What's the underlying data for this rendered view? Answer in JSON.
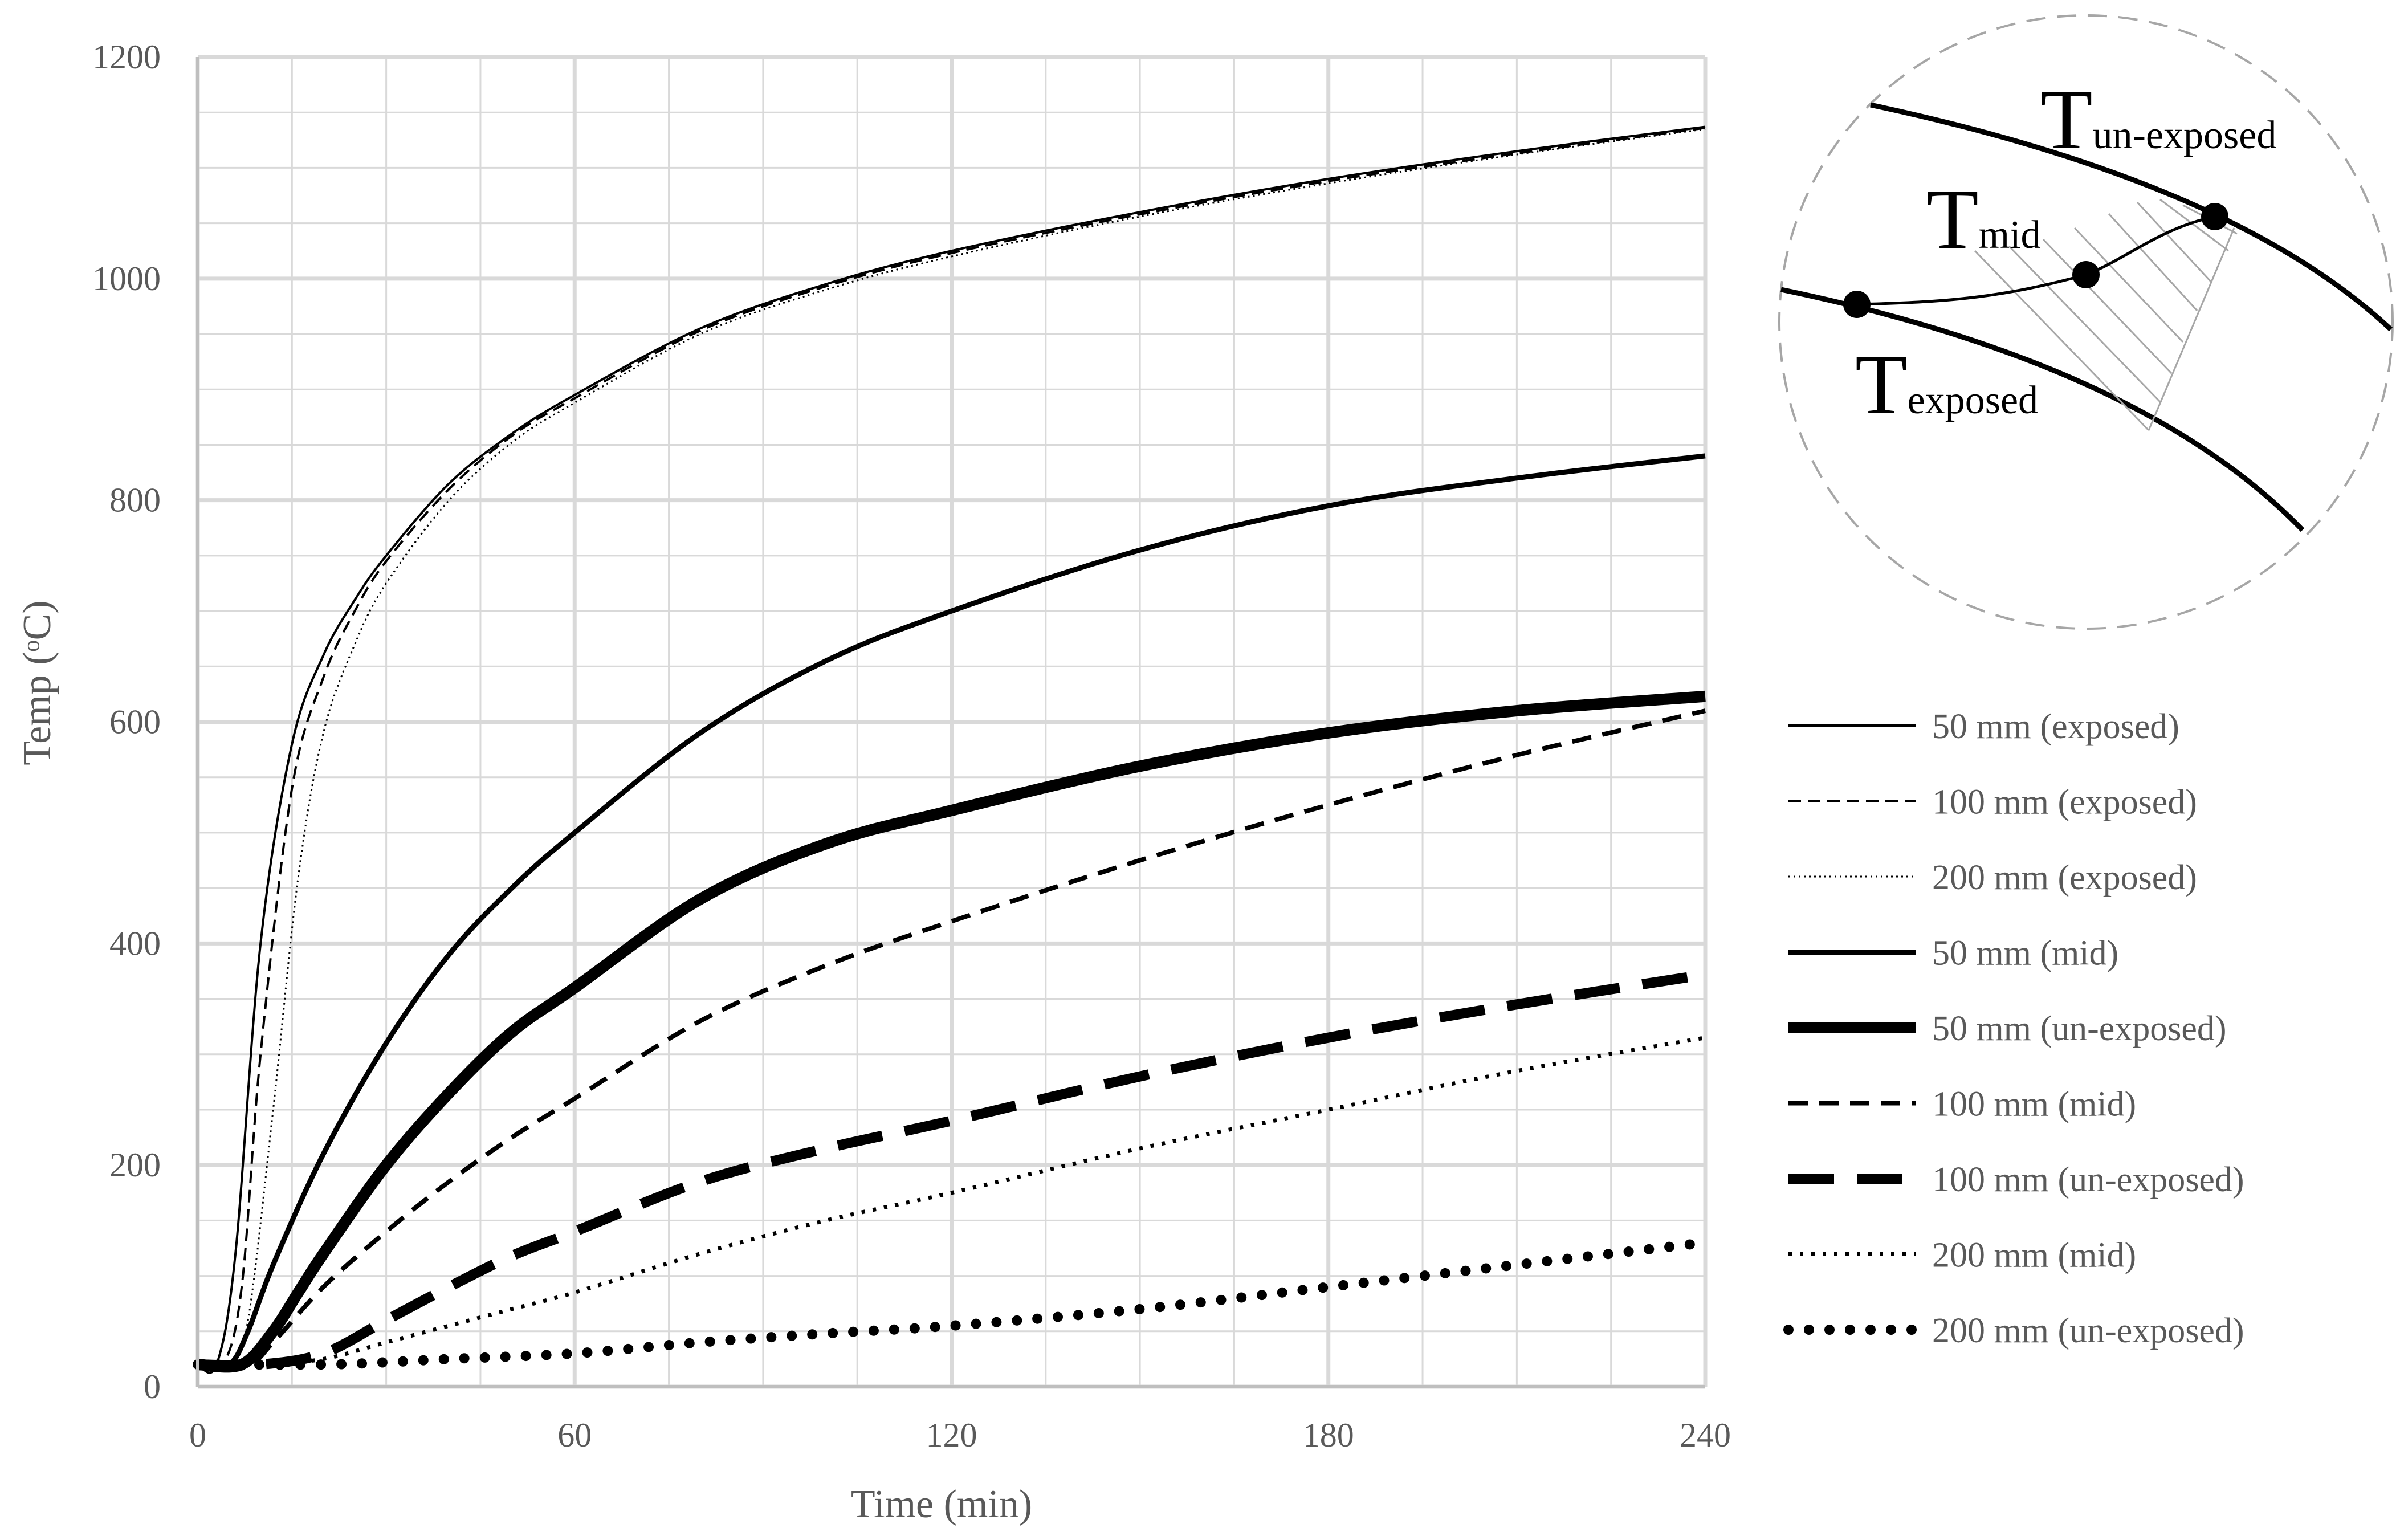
{
  "chart_data": {
    "type": "line",
    "title": "",
    "xlabel": "Time (min)",
    "ylabel": "Temp (ᵒC)",
    "xlim": [
      0,
      240
    ],
    "ylim": [
      0,
      1200
    ],
    "x_ticks": [
      0,
      60,
      120,
      180,
      240
    ],
    "y_ticks": [
      0,
      200,
      400,
      600,
      800,
      1000,
      1200
    ],
    "grid": true,
    "legend_position": "right",
    "series": [
      {
        "name": "50 mm (exposed)",
        "style": "thin-solid",
        "x": [
          0,
          3,
          6,
          10,
          15,
          20,
          25,
          30,
          40,
          50,
          60,
          80,
          100,
          120,
          150,
          180,
          210,
          240
        ],
        "y": [
          20,
          20,
          120,
          400,
          580,
          660,
          710,
          750,
          815,
          860,
          895,
          955,
          995,
          1025,
          1060,
          1090,
          1115,
          1137
        ]
      },
      {
        "name": "100 mm (exposed)",
        "style": "thin-dashed",
        "x": [
          0,
          4,
          7,
          10,
          15,
          20,
          25,
          30,
          40,
          50,
          60,
          80,
          100,
          120,
          150,
          180,
          210,
          240
        ],
        "y": [
          20,
          20,
          90,
          300,
          540,
          640,
          700,
          745,
          810,
          858,
          892,
          953,
          993,
          1023,
          1058,
          1088,
          1113,
          1136
        ]
      },
      {
        "name": "200 mm (exposed)",
        "style": "thin-dotted",
        "x": [
          0,
          5,
          8,
          12,
          16,
          20,
          25,
          30,
          40,
          50,
          60,
          80,
          100,
          120,
          150,
          180,
          210,
          240
        ],
        "y": [
          20,
          20,
          60,
          250,
          460,
          590,
          670,
          725,
          800,
          852,
          888,
          950,
          990,
          1020,
          1056,
          1086,
          1112,
          1135
        ]
      },
      {
        "name": "50 mm (mid)",
        "style": "solid",
        "x": [
          0,
          5,
          8,
          12,
          20,
          30,
          40,
          50,
          60,
          80,
          100,
          120,
          150,
          180,
          210,
          240
        ],
        "y": [
          20,
          20,
          50,
          110,
          210,
          310,
          390,
          450,
          500,
          590,
          655,
          700,
          755,
          795,
          820,
          840
        ]
      },
      {
        "name": "50 mm (un-exposed)",
        "style": "thick-solid",
        "x": [
          0,
          7,
          12,
          16,
          20,
          30,
          40,
          50,
          60,
          80,
          100,
          120,
          150,
          180,
          210,
          240
        ],
        "y": [
          20,
          20,
          50,
          85,
          120,
          200,
          265,
          320,
          360,
          440,
          490,
          520,
          560,
          590,
          610,
          623
        ]
      },
      {
        "name": "100 mm (mid)",
        "style": "dashed",
        "x": [
          0,
          8,
          12,
          20,
          30,
          40,
          50,
          60,
          80,
          100,
          120,
          150,
          180,
          210,
          240
        ],
        "y": [
          20,
          20,
          40,
          90,
          140,
          185,
          225,
          260,
          330,
          380,
          420,
          475,
          525,
          570,
          610
        ]
      },
      {
        "name": "100 mm (un-exposed)",
        "style": "thick-dashed",
        "x": [
          0,
          10,
          20,
          30,
          40,
          50,
          60,
          80,
          100,
          120,
          150,
          180,
          210,
          240
        ],
        "y": [
          20,
          20,
          30,
          60,
          90,
          118,
          140,
          185,
          215,
          240,
          280,
          315,
          345,
          372
        ]
      },
      {
        "name": "200 mm (mid)",
        "style": "dotted",
        "x": [
          0,
          10,
          20,
          30,
          40,
          50,
          60,
          80,
          100,
          120,
          150,
          180,
          210,
          240
        ],
        "y": [
          20,
          20,
          25,
          40,
          55,
          70,
          85,
          120,
          150,
          175,
          215,
          250,
          285,
          315
        ]
      },
      {
        "name": "200 mm (un-exposed)",
        "style": "thick-dotted",
        "x": [
          0,
          20,
          30,
          40,
          60,
          80,
          100,
          120,
          150,
          180,
          210,
          240
        ],
        "y": [
          20,
          20,
          22,
          25,
          30,
          40,
          48,
          55,
          70,
          90,
          110,
          130
        ]
      }
    ]
  },
  "inset": {
    "label_unexposed_main": "T",
    "label_unexposed_sub": "un-exposed",
    "label_mid_main": "T",
    "label_mid_sub": "mid",
    "label_exposed_main": "T",
    "label_exposed_sub": "exposed"
  },
  "style": {
    "line_color": "#000000",
    "grid_color": "#d9d9d9",
    "text_color": "#595959"
  }
}
